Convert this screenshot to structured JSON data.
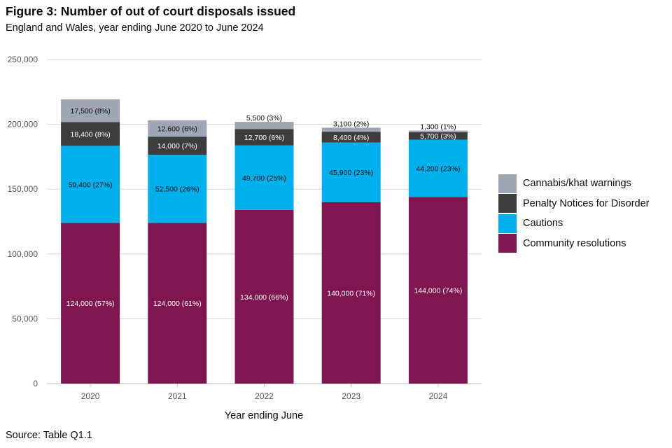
{
  "header": {
    "title": "Figure 3: Number of out of court disposals issued",
    "subtitle": "England and Wales, year ending June 2020 to June 2024"
  },
  "footer": {
    "source": "Source: Table Q1.1"
  },
  "chart_data": {
    "type": "bar",
    "stacked": true,
    "title": "Figure 3: Number of out of court disposals issued",
    "subtitle": "England and Wales, year ending June 2020 to June 2024",
    "xlabel": "Year ending June",
    "ylabel": "",
    "ylim": [
      0,
      250000
    ],
    "yticks": [
      0,
      50000,
      100000,
      150000,
      200000,
      250000
    ],
    "ytick_labels": [
      "0",
      "50,000",
      "100,000",
      "150,000",
      "200,000",
      "250,000"
    ],
    "grid": true,
    "legend_position": "right",
    "categories": [
      "2020",
      "2021",
      "2022",
      "2023",
      "2024"
    ],
    "series": [
      {
        "name": "Community resolutions",
        "color": "#801650",
        "values": [
          124000,
          124000,
          134000,
          140000,
          144000
        ],
        "labels": [
          "124,000 (57%)",
          "124,000 (61%)",
          "134,000 (66%)",
          "140,000 (71%)",
          "144,000 (74%)"
        ],
        "label_color": "#ffffff"
      },
      {
        "name": "Cautions",
        "color": "#00b0ec",
        "values": [
          59400,
          52500,
          49700,
          45900,
          44200
        ],
        "labels": [
          "59,400 (27%)",
          "52,500 (26%)",
          "49,700 (25%)",
          "45,900 (23%)",
          "44,200 (23%)"
        ],
        "label_color": "#0b0c0c"
      },
      {
        "name": "Penalty Notices for Disorder",
        "color": "#3d3d3d",
        "values": [
          18400,
          14000,
          12700,
          8400,
          5700
        ],
        "labels": [
          "18,400 (8%)",
          "14,000 (7%)",
          "12,700 (6%)",
          "8,400 (4%)",
          "5,700 (3%)"
        ],
        "label_color": "#ffffff"
      },
      {
        "name": "Cannabis/khat warnings",
        "color": "#a0a5b3",
        "values": [
          17500,
          12600,
          5500,
          3100,
          1300
        ],
        "labels": [
          "17,500 (8%)",
          "12,600 (6%)",
          "5,500 (3%)",
          "3,100 (2%)",
          "1,300 (1%)"
        ],
        "label_color": "#0b0c0c"
      }
    ],
    "legend_order": [
      "Cannabis/khat warnings",
      "Penalty Notices for Disorder",
      "Cautions",
      "Community resolutions"
    ]
  }
}
